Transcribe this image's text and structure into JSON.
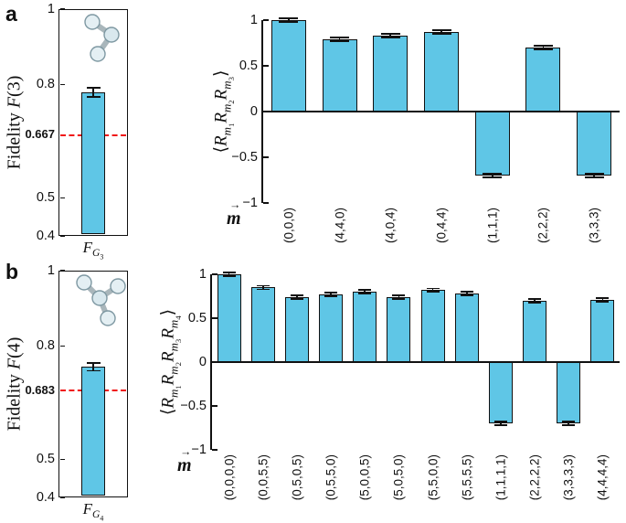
{
  "panel_labels": [
    "a",
    "b"
  ],
  "colors": {
    "bar_fill": "#5fc6e6",
    "bar_edge": "#111111",
    "error": "#111111",
    "threshold": "#f01414",
    "axis": "#111111"
  },
  "chart_data": [
    {
      "id": "fidelity-3",
      "panel": "a",
      "type": "bar",
      "ylabel": "Fidelity F(3)",
      "ylabel_html": "Fidelity <i>F</i>(3)",
      "ylim": [
        0.4,
        1
      ],
      "yticks": [
        1,
        0.8,
        0.667,
        0.5,
        0.4
      ],
      "ytick_labels": [
        "1",
        "0.8",
        "0.667",
        "0.5",
        "0.4"
      ],
      "threshold": {
        "value": 0.667,
        "label": "0.667",
        "color": "red",
        "style": "dashed"
      },
      "categories": [
        "F_G3"
      ],
      "categories_html": [
        "<i>F</i><sub><i>G</i><sub>3</sub></sub>"
      ],
      "values": [
        0.78
      ],
      "errors": [
        0.012
      ],
      "icon": "three-qubit-graph-state-icon",
      "grid": false,
      "legend": false
    },
    {
      "id": "correlations-3",
      "panel": "a",
      "type": "bar",
      "ylabel": "<R_m1 R_m2 R_m3>",
      "ylabel_html": "&#10216;<i>R</i><sub><i>m</i><sub>1</sub></sub><i>R</i><sub><i>m</i><sub>2</sub></sub><i>R</i><sub><i>m</i><sub>3</sub></sub>&#10217;",
      "xlabel": "m⃗",
      "xlabel_html": "<span class=\"vec-wrap\"><span class=\"vec-arrow\">&#8594;</span><i>m</i></span>",
      "ylim": [
        -1,
        1
      ],
      "yticks": [
        1,
        0.5,
        0,
        -0.5,
        -1
      ],
      "ytick_labels": [
        "1",
        "0.5",
        "0",
        "−0.5",
        "−1"
      ],
      "categories": [
        "(0,0,0)",
        "(4,4,0)",
        "(4,0,4)",
        "(0,4,4)",
        "(1,1,1)",
        "(2,2,2)",
        "(3,3,3)"
      ],
      "values": [
        1.0,
        0.79,
        0.83,
        0.87,
        -0.7,
        0.7,
        -0.7
      ],
      "errors": [
        0.02,
        0.02,
        0.02,
        0.02,
        0.02,
        0.02,
        0.02
      ],
      "grid": false,
      "legend": false
    },
    {
      "id": "fidelity-4",
      "panel": "b",
      "type": "bar",
      "ylabel": "Fidelity F(4)",
      "ylabel_html": "Fidelity <i>F</i>(4)",
      "ylim": [
        0.4,
        1
      ],
      "yticks": [
        1,
        0.8,
        0.683,
        0.5,
        0.4
      ],
      "ytick_labels": [
        "1",
        "0.8",
        "0.683",
        "0.5",
        "0.4"
      ],
      "threshold": {
        "value": 0.683,
        "label": "0.683",
        "color": "red",
        "style": "dashed"
      },
      "categories": [
        "F_G4"
      ],
      "categories_html": [
        "<i>F</i><sub><i>G</i><sub>4</sub></sub>"
      ],
      "values": [
        0.745
      ],
      "errors": [
        0.01
      ],
      "icon": "four-qubit-graph-state-icon",
      "grid": false,
      "legend": false
    },
    {
      "id": "correlations-4",
      "panel": "b",
      "type": "bar",
      "ylabel": "<R_m1 R_m2 R_m3 R_m4>",
      "ylabel_html": "&#10216;<i>R</i><sub><i>m</i><sub>1</sub></sub><i>R</i><sub><i>m</i><sub>2</sub></sub><i>R</i><sub><i>m</i><sub>3</sub></sub><i>R</i><sub><i>m</i><sub>4</sub></sub>&#10217;",
      "xlabel": "m⃗",
      "xlabel_html": "<span class=\"vec-wrap\"><span class=\"vec-arrow\">&#8594;</span><i>m</i></span>",
      "ylim": [
        -1,
        1
      ],
      "yticks": [
        1,
        0.5,
        0,
        -0.5,
        -1
      ],
      "ytick_labels": [
        "1",
        "0.5",
        "0",
        "−0.5",
        "−1"
      ],
      "categories": [
        "(0,0,0,0)",
        "(0,0,5,5)",
        "(0,5,0,5)",
        "(0,5,5,0)",
        "(5,0,0,5)",
        "(5,0,5,0)",
        "(5,5,0,0)",
        "(5,5,5,5)",
        "(1,1,1,1)",
        "(2,2,2,2)",
        "(3,3,3,3)",
        "(4,4,4,4)"
      ],
      "values": [
        1.0,
        0.85,
        0.74,
        0.77,
        0.8,
        0.74,
        0.82,
        0.78,
        -0.7,
        0.7,
        -0.7,
        0.71
      ],
      "errors": [
        0.02,
        0.02,
        0.02,
        0.02,
        0.02,
        0.02,
        0.02,
        0.02,
        0.02,
        0.02,
        0.02,
        0.02
      ],
      "grid": false,
      "legend": false
    }
  ]
}
